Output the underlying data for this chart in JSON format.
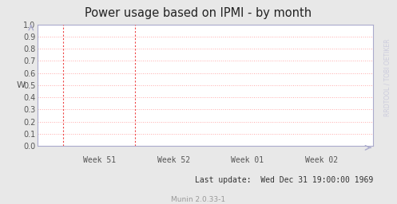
{
  "title": "Power usage based on IPMI - by month",
  "ylabel": "W",
  "ylim": [
    0.0,
    1.0
  ],
  "yticks": [
    0.0,
    0.1,
    0.2,
    0.3,
    0.4,
    0.5,
    0.6,
    0.7,
    0.8,
    0.9,
    1.0
  ],
  "xtick_labels": [
    "Week 51",
    "Week 52",
    "Week 01",
    "Week 02"
  ],
  "xtick_positions": [
    0.185,
    0.405,
    0.625,
    0.845
  ],
  "footer_text": "Last update:  Wed Dec 31 19:00:00 1969",
  "footer_sub": "Munin 2.0.33-1",
  "watermark": "RRDTOOL / TOBI OETIKER",
  "vline_positions": [
    0.075,
    0.29
  ],
  "bg_color": "#e8e8e8",
  "plot_bg_color": "#ffffff",
  "grid_color": "#ffaaaa",
  "axis_color": "#aaaacc",
  "tick_color": "#555555",
  "title_color": "#222222",
  "footer_color": "#333333",
  "footer_sub_color": "#999999",
  "watermark_color": "#ccccdd",
  "vline_color": "#ee4444",
  "title_fontsize": 10.5,
  "tick_fontsize": 7,
  "footer_fontsize": 7,
  "footer_sub_fontsize": 6.5,
  "watermark_fontsize": 5.5
}
